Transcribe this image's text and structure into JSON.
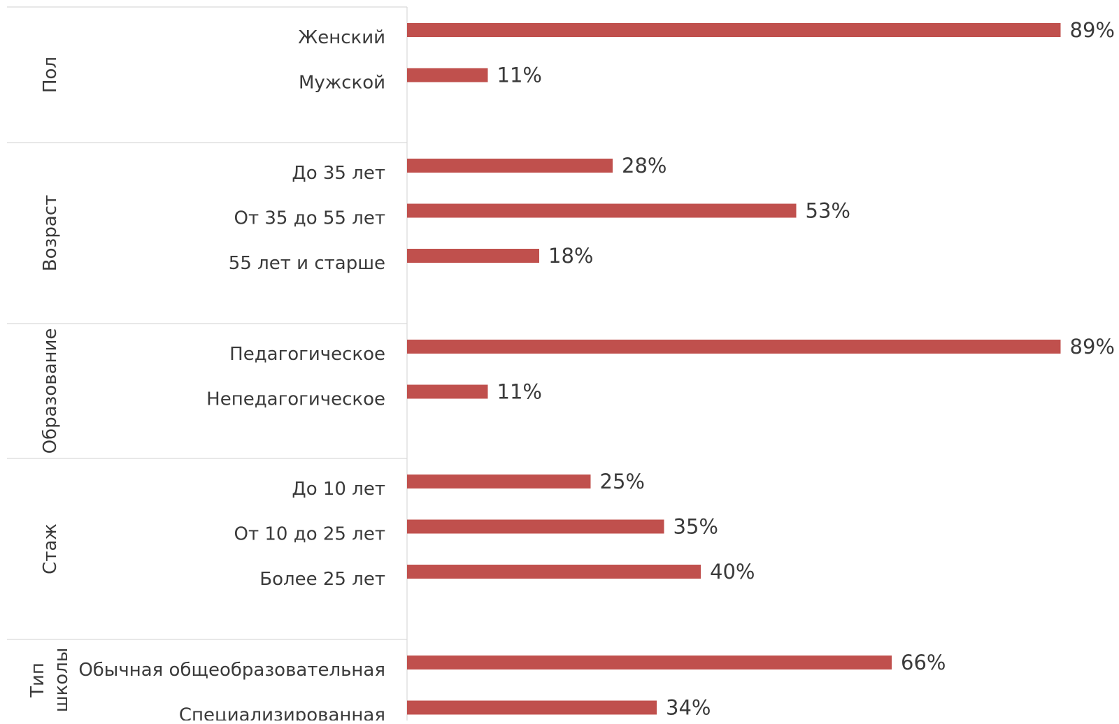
{
  "colors": {
    "bar": "#C0504D",
    "text": "#3a3a3a",
    "gridline": "#d9d9d9",
    "background": "#ffffff"
  },
  "chart_data": {
    "type": "bar",
    "orientation": "horizontal",
    "title": "",
    "xlabel": "",
    "ylabel": "",
    "xlim": [
      0,
      100
    ],
    "unit": "%",
    "grid": false,
    "legend": "none",
    "groups": [
      {
        "name": "Пол",
        "name_lines": [
          "Пол"
        ],
        "categories": [
          "Женский",
          "Мужской"
        ],
        "values": [
          89,
          11
        ],
        "value_labels": [
          "89%",
          "11%"
        ]
      },
      {
        "name": "Возраст",
        "name_lines": [
          "Возраст"
        ],
        "categories": [
          "До 35 лет",
          "От 35 до 55 лет",
          "55 лет и старше"
        ],
        "values": [
          28,
          53,
          18
        ],
        "value_labels": [
          "28%",
          "53%",
          "18%"
        ]
      },
      {
        "name": "Образование",
        "name_lines": [
          "Образование"
        ],
        "categories": [
          "Педагогическое",
          "Непедагогическое"
        ],
        "values": [
          89,
          11
        ],
        "value_labels": [
          "89%",
          "11%"
        ]
      },
      {
        "name": "Стаж",
        "name_lines": [
          "Стаж"
        ],
        "categories": [
          "До 10 лет",
          "От 10 до 25 лет",
          "Более 25 лет"
        ],
        "values": [
          25,
          35,
          40
        ],
        "value_labels": [
          "25%",
          "35%",
          "40%"
        ]
      },
      {
        "name": "Тип школы",
        "name_lines": [
          "Тип",
          "школы"
        ],
        "categories": [
          "Обычная общеобразовательная",
          "Специализированная"
        ],
        "values": [
          66,
          34
        ],
        "value_labels": [
          "66%",
          "34%"
        ]
      }
    ]
  }
}
